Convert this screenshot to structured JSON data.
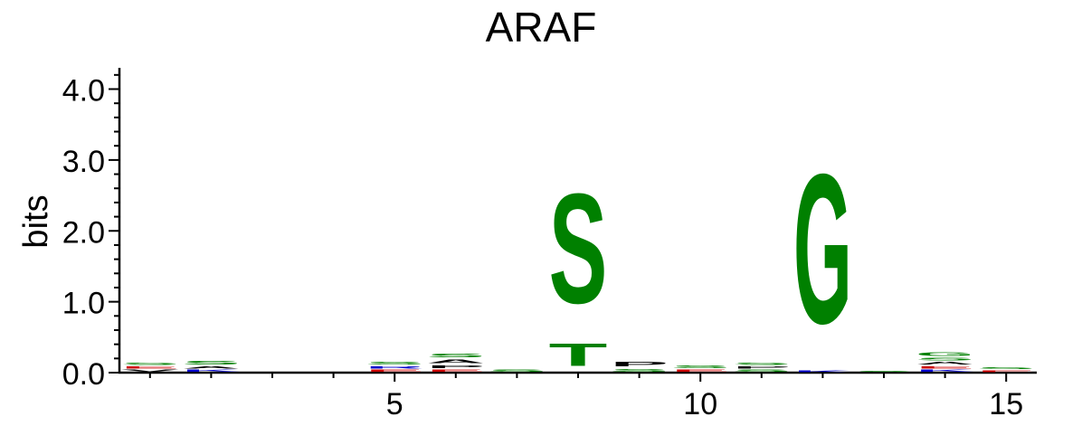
{
  "chart_data": {
    "type": "sequence-logo",
    "title": "ARAF",
    "ylabel": "bits",
    "ylim": [
      0,
      4.3
    ],
    "y_ticks": [
      "0.0",
      "1.0",
      "2.0",
      "3.0",
      "4.0"
    ],
    "y_tick_values": [
      0,
      1,
      2,
      3,
      4
    ],
    "x_ticks": [
      "5",
      "10",
      "15"
    ],
    "x_tick_values": [
      5,
      10,
      15
    ],
    "xlim": [
      0.5,
      15.5
    ],
    "colors": {
      "polar": "#008000",
      "hydrophobic": "#000000",
      "basic": "#0000cc",
      "acidic": "#cc0000"
    },
    "positions": [
      {
        "pos": 1,
        "letters": [
          {
            "l": "V",
            "h": 0.05,
            "c": "hydrophobic"
          },
          {
            "l": "E",
            "h": 0.05,
            "c": "acidic"
          },
          {
            "l": "S",
            "h": 0.05,
            "c": "polar"
          }
        ]
      },
      {
        "pos": 2,
        "letters": [
          {
            "l": "K",
            "h": 0.05,
            "c": "basic"
          },
          {
            "l": "A",
            "h": 0.05,
            "c": "hydrophobic"
          },
          {
            "l": "S",
            "h": 0.08,
            "c": "polar"
          }
        ]
      },
      {
        "pos": 3,
        "letters": []
      },
      {
        "pos": 4,
        "letters": []
      },
      {
        "pos": 5,
        "letters": [
          {
            "l": "E",
            "h": 0.05,
            "c": "acidic"
          },
          {
            "l": "R",
            "h": 0.05,
            "c": "basic"
          },
          {
            "l": "S",
            "h": 0.07,
            "c": "polar"
          }
        ]
      },
      {
        "pos": 6,
        "letters": [
          {
            "l": "E",
            "h": 0.05,
            "c": "acidic"
          },
          {
            "l": "P",
            "h": 0.07,
            "c": "hydrophobic"
          },
          {
            "l": "A",
            "h": 0.08,
            "c": "hydrophobic"
          },
          {
            "l": "S",
            "h": 0.08,
            "c": "polar"
          }
        ]
      },
      {
        "pos": 7,
        "letters": [
          {
            "l": "S",
            "h": 0.05,
            "c": "polar"
          }
        ]
      },
      {
        "pos": 8,
        "letters": [
          {
            "l": "T",
            "h": 0.5,
            "c": "polar"
          },
          {
            "l": "S",
            "h": 2.48,
            "c": "polar"
          }
        ]
      },
      {
        "pos": 9,
        "letters": [
          {
            "l": "S",
            "h": 0.07,
            "c": "polar"
          },
          {
            "l": "P",
            "h": 0.1,
            "c": "hydrophobic"
          }
        ]
      },
      {
        "pos": 10,
        "letters": [
          {
            "l": "E",
            "h": 0.05,
            "c": "acidic"
          },
          {
            "l": "S",
            "h": 0.07,
            "c": "polar"
          }
        ]
      },
      {
        "pos": 11,
        "letters": [
          {
            "l": "S",
            "h": 0.05,
            "c": "polar"
          },
          {
            "l": "P",
            "h": 0.05,
            "c": "hydrophobic"
          },
          {
            "l": "S",
            "h": 0.05,
            "c": "polar"
          }
        ]
      },
      {
        "pos": 12,
        "letters": [
          {
            "l": "K",
            "h": 0.04,
            "c": "basic"
          },
          {
            "l": "G",
            "h": 3.38,
            "c": "polar"
          }
        ]
      },
      {
        "pos": 13,
        "letters": [
          {
            "l": "S",
            "h": 0.03,
            "c": "polar"
          }
        ]
      },
      {
        "pos": 14,
        "letters": [
          {
            "l": "K",
            "h": 0.05,
            "c": "basic"
          },
          {
            "l": "E",
            "h": 0.05,
            "c": "acidic"
          },
          {
            "l": "A",
            "h": 0.06,
            "c": "hydrophobic"
          },
          {
            "l": "S",
            "h": 0.06,
            "c": "polar"
          },
          {
            "l": "G",
            "h": 0.08,
            "c": "polar"
          }
        ]
      },
      {
        "pos": 15,
        "letters": [
          {
            "l": "E",
            "h": 0.04,
            "c": "acidic"
          },
          {
            "l": "S",
            "h": 0.04,
            "c": "polar"
          }
        ]
      }
    ]
  }
}
